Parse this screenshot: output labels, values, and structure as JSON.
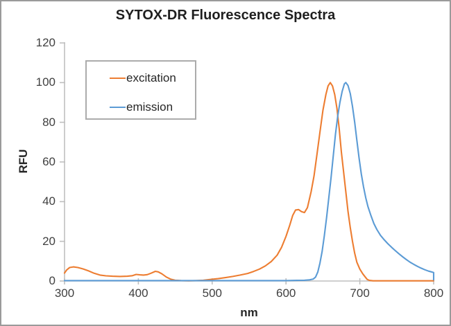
{
  "window": {
    "background": "#ffffff",
    "border_color": "#9a9a9a"
  },
  "title": {
    "text": "SYTOX-DR Fluorescence Spectra"
  },
  "legend": {
    "position": "upper-left",
    "items": [
      {
        "label": "excitation",
        "color": "#ED7D31"
      },
      {
        "label": "emission",
        "color": "#5B9BD5"
      }
    ]
  },
  "axes": {
    "x": {
      "title": "nm",
      "ticks": [
        300,
        400,
        500,
        600,
        700,
        800
      ],
      "min": 300,
      "max": 800
    },
    "y": {
      "title": "RFU",
      "ticks": [
        0,
        20,
        40,
        60,
        80,
        100,
        120
      ],
      "min": 0,
      "max": 120
    },
    "line_color": "#BFBFBF",
    "tick_label_color": "#404040"
  },
  "chart_data": {
    "type": "line",
    "title": "SYTOX-DR Fluorescence Spectra",
    "xlabel": "nm",
    "ylabel": "RFU",
    "xlim": [
      300,
      800
    ],
    "ylim": [
      0,
      120
    ],
    "grid": false,
    "legend_position": "upper-left-inside",
    "series": [
      {
        "name": "excitation",
        "color": "#ED7D31",
        "peak_nm": 660,
        "points": [
          [
            300,
            4
          ],
          [
            303,
            5.6
          ],
          [
            307,
            6.8
          ],
          [
            312,
            7.1
          ],
          [
            318,
            6.8
          ],
          [
            325,
            6.1
          ],
          [
            332,
            5.2
          ],
          [
            340,
            3.9
          ],
          [
            348,
            3
          ],
          [
            356,
            2.6
          ],
          [
            365,
            2.4
          ],
          [
            375,
            2.3
          ],
          [
            385,
            2.4
          ],
          [
            392,
            2.7
          ],
          [
            397,
            3.3
          ],
          [
            402,
            3.1
          ],
          [
            407,
            3
          ],
          [
            412,
            3.2
          ],
          [
            417,
            3.9
          ],
          [
            423,
            4.9
          ],
          [
            427,
            4.6
          ],
          [
            432,
            3.6
          ],
          [
            438,
            2
          ],
          [
            444,
            0.9
          ],
          [
            450,
            0.4
          ],
          [
            458,
            0.2
          ],
          [
            468,
            0.1
          ],
          [
            478,
            0.2
          ],
          [
            488,
            0.4
          ],
          [
            498,
            0.8
          ],
          [
            508,
            1.2
          ],
          [
            518,
            1.7
          ],
          [
            528,
            2.3
          ],
          [
            538,
            3
          ],
          [
            548,
            3.8
          ],
          [
            556,
            4.8
          ],
          [
            564,
            6
          ],
          [
            572,
            7.6
          ],
          [
            580,
            9.8
          ],
          [
            588,
            13
          ],
          [
            594,
            17
          ],
          [
            600,
            22.5
          ],
          [
            605,
            28
          ],
          [
            609,
            33
          ],
          [
            613,
            35.8
          ],
          [
            617,
            36
          ],
          [
            621,
            35
          ],
          [
            625,
            34.5
          ],
          [
            629,
            37
          ],
          [
            634,
            45
          ],
          [
            638,
            53
          ],
          [
            642,
            64
          ],
          [
            646,
            75
          ],
          [
            650,
            86
          ],
          [
            654,
            94
          ],
          [
            657,
            98.3
          ],
          [
            660,
            100
          ],
          [
            663,
            98.3
          ],
          [
            666,
            94
          ],
          [
            669,
            87
          ],
          [
            672,
            77
          ],
          [
            675,
            65
          ],
          [
            678,
            55
          ],
          [
            681,
            45
          ],
          [
            684,
            35
          ],
          [
            687,
            27
          ],
          [
            690,
            20
          ],
          [
            693,
            14
          ],
          [
            696,
            9.5
          ],
          [
            700,
            6
          ],
          [
            704,
            3.6
          ],
          [
            707,
            2.2
          ],
          [
            710,
            0.8
          ],
          [
            713,
            0.3
          ],
          [
            718,
            0.1
          ],
          [
            760,
            0.1
          ],
          [
            800,
            0.1
          ]
        ]
      },
      {
        "name": "emission",
        "color": "#5B9BD5",
        "peak_nm": 681,
        "points": [
          [
            300,
            0.2
          ],
          [
            350,
            0.2
          ],
          [
            400,
            0.2
          ],
          [
            450,
            0.2
          ],
          [
            500,
            0.2
          ],
          [
            550,
            0.2
          ],
          [
            600,
            0.2
          ],
          [
            615,
            0.3
          ],
          [
            625,
            0.4
          ],
          [
            632,
            0.6
          ],
          [
            637,
            1
          ],
          [
            640,
            2
          ],
          [
            643,
            4.5
          ],
          [
            646,
            9
          ],
          [
            649,
            15
          ],
          [
            652,
            23
          ],
          [
            655,
            32
          ],
          [
            658,
            42
          ],
          [
            661,
            52
          ],
          [
            664,
            63
          ],
          [
            667,
            74
          ],
          [
            670,
            83
          ],
          [
            673,
            90
          ],
          [
            676,
            95.5
          ],
          [
            679,
            99.3
          ],
          [
            681,
            100
          ],
          [
            684,
            98.5
          ],
          [
            687,
            94.5
          ],
          [
            690,
            88
          ],
          [
            693,
            80
          ],
          [
            696,
            71
          ],
          [
            699,
            62
          ],
          [
            702,
            54
          ],
          [
            705,
            47.5
          ],
          [
            708,
            42
          ],
          [
            711,
            37.5
          ],
          [
            715,
            33
          ],
          [
            719,
            29
          ],
          [
            723,
            26
          ],
          [
            728,
            23
          ],
          [
            733,
            20.8
          ],
          [
            738,
            18.8
          ],
          [
            743,
            17
          ],
          [
            748,
            15.3
          ],
          [
            753,
            13.7
          ],
          [
            758,
            12.2
          ],
          [
            763,
            10.8
          ],
          [
            768,
            9.5
          ],
          [
            773,
            8.4
          ],
          [
            778,
            7.4
          ],
          [
            783,
            6.5
          ],
          [
            788,
            5.7
          ],
          [
            793,
            5
          ],
          [
            797,
            4.6
          ],
          [
            800,
            4.3
          ],
          [
            800,
            0.6
          ]
        ]
      }
    ]
  },
  "plot_geometry_note": "x axis 300-800 nm, y axis 0-120 RFU, no gridlines, gray axis lines with cross ticks"
}
